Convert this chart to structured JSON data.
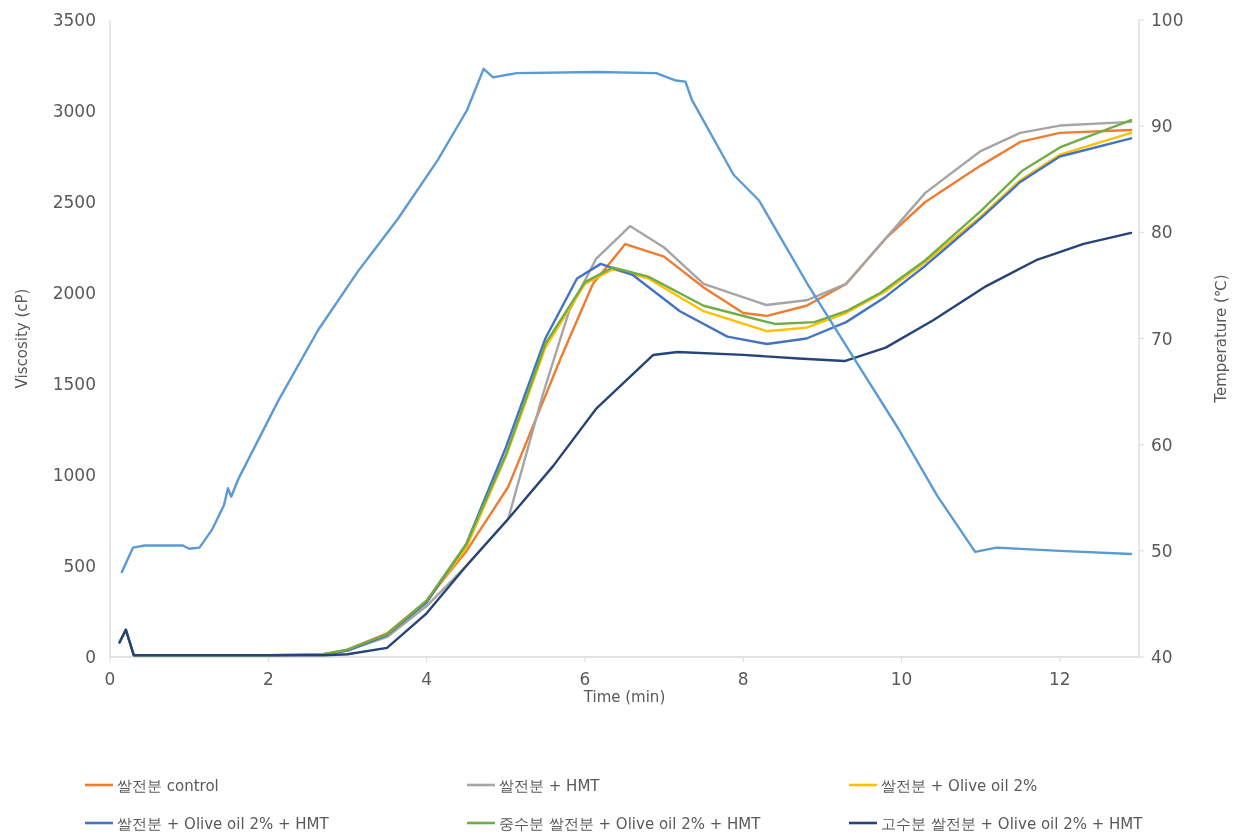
{
  "chart_data": {
    "type": "line",
    "xlabel": "Time (min)",
    "ylabel": "Viscosity (cP)",
    "y2label": "Temperature (℃)",
    "xlim": [
      0,
      13
    ],
    "xticks": [
      0,
      2,
      4,
      6,
      8,
      10,
      12
    ],
    "ylim": [
      0,
      3500
    ],
    "yticks": [
      0,
      500,
      1000,
      1500,
      2000,
      2500,
      3000,
      3500
    ],
    "y2lim": [
      40,
      100
    ],
    "y2ticks": [
      40,
      50,
      60,
      70,
      80,
      90,
      100
    ],
    "legend": "bottom",
    "series": [
      {
        "name": "쌀전분 control",
        "color": "#ed7d31",
        "x": [
          2.7,
          3.0,
          3.5,
          4.0,
          4.5,
          5.03,
          5.69,
          6.1,
          6.51,
          7.0,
          7.5,
          8.0,
          8.3,
          8.8,
          9.3,
          9.8,
          10.3,
          11.0,
          11.5,
          12.0,
          12.9
        ],
        "values": [
          15,
          40,
          130,
          310,
          580,
          934,
          1637,
          2050,
          2269,
          2200,
          2030,
          1890,
          1874,
          1930,
          2050,
          2300,
          2500,
          2700,
          2830,
          2880,
          2896
        ]
      },
      {
        "name": "쌀전분 + HMT",
        "color": "#a5a5a5",
        "x": [
          0.12,
          0.2,
          0.3,
          1.0,
          2.0,
          2.7,
          3.0,
          3.5,
          4.0,
          4.5,
          5.03,
          5.47,
          5.8,
          6.14,
          6.57,
          7.0,
          7.5,
          8.29,
          8.8,
          9.3,
          9.8,
          10.3,
          11.0,
          11.5,
          12.0,
          12.9
        ],
        "values": [
          80,
          150,
          10,
          10,
          10,
          15,
          35,
          110,
          280,
          500,
          758,
          1445,
          1900,
          2187,
          2368,
          2250,
          2050,
          1934,
          1960,
          2050,
          2300,
          2550,
          2780,
          2880,
          2920,
          2940
        ]
      },
      {
        "name": "쌀전분 + Olive oil 2%",
        "color": "#ffc000",
        "x": [
          3.5,
          4.0,
          4.5,
          5.0,
          5.5,
          6.0,
          6.35,
          6.8,
          7.5,
          8.3,
          8.8,
          9.3,
          9.8,
          10.3,
          11.0,
          11.5,
          12.0,
          12.9
        ],
        "values": [
          120,
          300,
          600,
          1100,
          1700,
          2050,
          2130,
          2080,
          1900,
          1790,
          1810,
          1890,
          2010,
          2170,
          2420,
          2620,
          2760,
          2880
        ]
      },
      {
        "name": "쌀전분 + Olive oil 2% + HMT",
        "color": "#4472c4",
        "x": [
          2.7,
          3.0,
          3.5,
          4.0,
          4.5,
          5.0,
          5.5,
          5.9,
          6.2,
          6.6,
          7.2,
          7.8,
          8.3,
          8.8,
          9.3,
          9.8,
          10.3,
          11.0,
          11.5,
          12.0,
          12.9
        ],
        "values": [
          15,
          35,
          120,
          300,
          620,
          1150,
          1750,
          2080,
          2160,
          2100,
          1900,
          1760,
          1720,
          1750,
          1840,
          1980,
          2150,
          2410,
          2610,
          2750,
          2850
        ]
      },
      {
        "name": "중수분 쌀전분 + Olive oil 2% + HMT",
        "color": "#70ad47",
        "x": [
          0.12,
          0.2,
          0.3,
          1.0,
          2.0,
          2.7,
          3.0,
          3.5,
          4.0,
          4.5,
          5.0,
          5.5,
          6.0,
          6.35,
          6.8,
          7.5,
          8.4,
          8.9,
          9.3,
          9.73,
          10.3,
          11.0,
          11.52,
          12.0,
          12.9
        ],
        "values": [
          80,
          150,
          10,
          10,
          10,
          15,
          40,
          125,
          310,
          620,
          1110,
          1720,
          2060,
          2140,
          2090,
          1930,
          1830,
          1840,
          1900,
          2000,
          2180,
          2450,
          2670,
          2800,
          2950
        ]
      },
      {
        "name": "고수분 쌀전분 + Olive oil 2% + HMT",
        "color": "#264478",
        "x": [
          0.12,
          0.2,
          0.3,
          1.0,
          2.0,
          2.7,
          3.0,
          3.5,
          4.0,
          4.5,
          5.03,
          5.6,
          6.14,
          6.86,
          7.17,
          8.0,
          8.7,
          9.28,
          9.8,
          10.4,
          11.07,
          11.7,
          12.3,
          12.9
        ],
        "values": [
          80,
          150,
          10,
          10,
          10,
          10,
          15,
          50,
          240,
          500,
          758,
          1050,
          1363,
          1659,
          1676,
          1660,
          1640,
          1626,
          1700,
          1850,
          2038,
          2180,
          2270,
          2330
        ]
      },
      {
        "color": "#5b9bd5",
        "axis": "y2",
        "x": [
          0.15,
          0.29,
          0.44,
          0.92,
          1.0,
          1.13,
          1.29,
          1.44,
          1.49,
          1.53,
          1.63,
          2.13,
          2.63,
          3.13,
          3.64,
          4.14,
          4.51,
          4.72,
          4.84,
          5.14,
          6.14,
          6.9,
          7.15,
          7.27,
          7.35,
          7.88,
          8.2,
          8.83,
          9.42,
          9.96,
          10.45,
          10.93,
          11.2,
          12.0,
          12.9
        ],
        "values": [
          48.0,
          50.3,
          50.5,
          50.5,
          50.2,
          50.3,
          52.0,
          54.3,
          55.9,
          55.1,
          56.9,
          64.2,
          70.8,
          76.3,
          81.3,
          86.8,
          91.5,
          95.4,
          94.6,
          95.0,
          95.1,
          95.0,
          94.3,
          94.2,
          92.5,
          85.4,
          83.0,
          74.9,
          67.9,
          61.5,
          55.2,
          49.9,
          50.3,
          50.0,
          49.7
        ]
      }
    ]
  }
}
